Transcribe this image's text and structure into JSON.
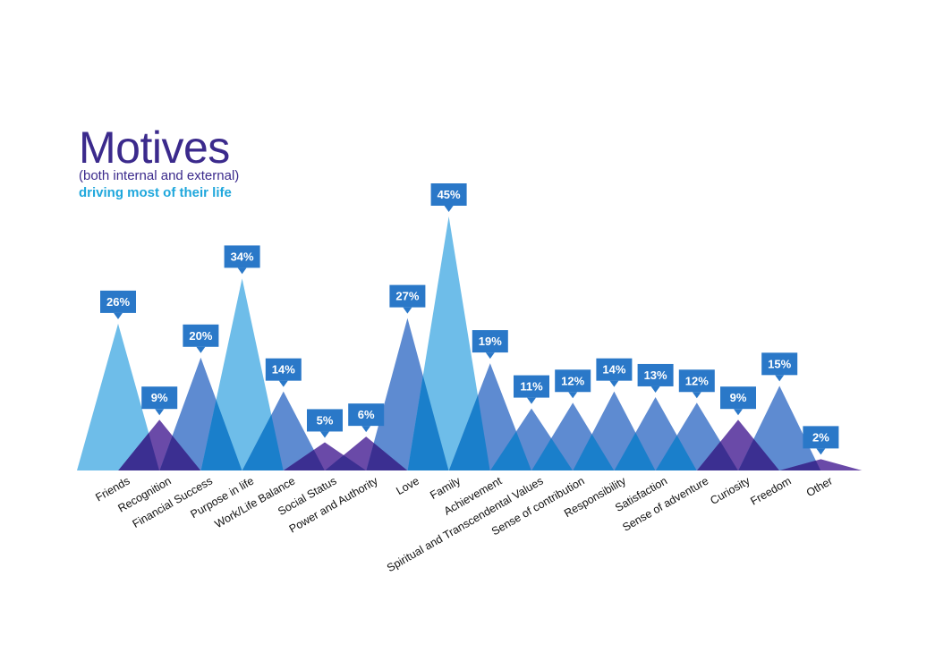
{
  "title": {
    "main": "Motives",
    "sub1": "(both internal and external)",
    "sub2": "driving most of their life"
  },
  "colors": {
    "light": "#6ebde9",
    "mid": "#5e8bd1",
    "purple": "#6a4aa8",
    "dark_overlap": "#3b2f91",
    "mid_overlap": "#1a7fcb",
    "purple_overlap": "#5a3aa0",
    "callout": "#2a78c8"
  },
  "chart_data": {
    "type": "area",
    "value_suffix": "%",
    "categories": [
      "Friends",
      "Recognition",
      "Financial Success",
      "Purpose in life",
      "Work/Life Balance",
      "Social Status",
      "Power and Authority",
      "Love",
      "Family",
      "Achievement",
      "Spiritual and Transcendental Values",
      "Sense of contribution",
      "Responsibility",
      "Satisfaction",
      "Sense of adventure",
      "Curiosity",
      "Freedom",
      "Other"
    ],
    "values": [
      26,
      9,
      20,
      34,
      14,
      5,
      6,
      27,
      45,
      19,
      11,
      12,
      14,
      13,
      12,
      9,
      15,
      2
    ],
    "series_colors": [
      "light",
      "purple",
      "mid",
      "light",
      "mid",
      "purple",
      "purple",
      "mid",
      "light",
      "mid",
      "mid",
      "mid",
      "mid",
      "mid",
      "mid",
      "purple",
      "mid",
      "purple"
    ],
    "ylim": [
      0,
      45
    ]
  }
}
